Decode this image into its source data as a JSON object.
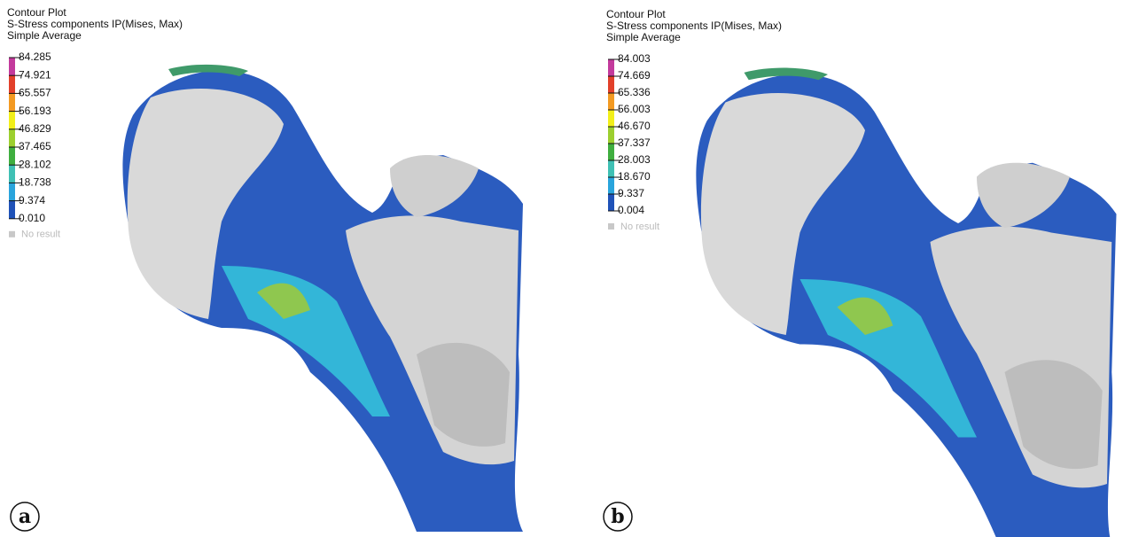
{
  "panels": [
    {
      "label": "a",
      "header": [
        "Contour Plot",
        "S-Stress components IP(Mises, Max)",
        "Simple Average"
      ],
      "levels": [
        "84.285",
        "74.921",
        "65.557",
        "56.193",
        "46.829",
        "37.465",
        "28.102",
        "18.738",
        "9.374",
        "0.010"
      ],
      "band_colors": [
        "#c33a9c",
        "#e2402a",
        "#f39a22",
        "#f2ef1a",
        "#9ccf2f",
        "#3fae3f",
        "#3fc0b4",
        "#29a4dc",
        "#1f52b8"
      ],
      "no_result": "No result"
    },
    {
      "label": "b",
      "header": [
        "Contour Plot",
        "S-Stress components IP(Mises, Max)",
        "Simple Average"
      ],
      "levels": [
        "84.003",
        "74.669",
        "65.336",
        "56.003",
        "46.670",
        "37.337",
        "28.003",
        "18.670",
        "9.337",
        "0.004"
      ],
      "band_colors": [
        "#c33a9c",
        "#e2402a",
        "#f39a22",
        "#f2ef1a",
        "#9ccf2f",
        "#3fae3f",
        "#3fc0b4",
        "#29a4dc",
        "#1f52b8"
      ],
      "no_result": "No result"
    }
  ]
}
